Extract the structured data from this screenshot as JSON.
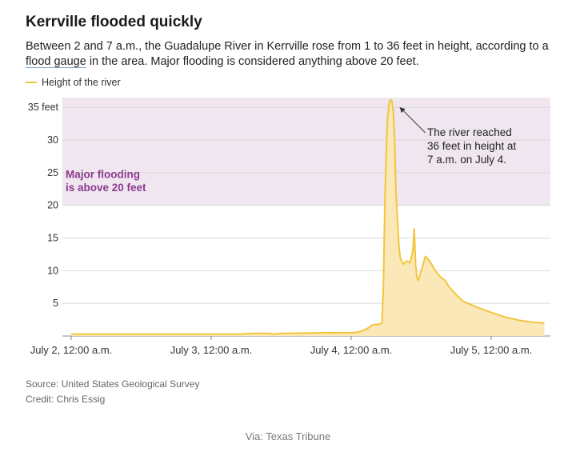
{
  "header": {
    "title": "Kerrville flooded quickly",
    "subtitle_part1": "Between 2 and 7 a.m., the Guadalupe River in Kerrville rose from 1 to 36 feet in height, according to a ",
    "subtitle_link": "flood gauge",
    "subtitle_part2": " in the area. Major flooding is considered anything above 20 feet."
  },
  "legend": {
    "label": "Height of the river"
  },
  "footer": {
    "source": "Source: United States Geological Survey",
    "credit": "Credit: Chris Essig",
    "via": "Via: Texas Tribune"
  },
  "colors": {
    "line": "#f2c53d",
    "area": "#fbe8b8",
    "band": "#efe6f0",
    "band_text": "#8e3a8e",
    "grid": "#d9d9d9"
  },
  "chart_data": {
    "type": "area",
    "xlabel": "",
    "ylabel": "",
    "xlim": [
      0,
      3.45
    ],
    "ylim": [
      0,
      36.5
    ],
    "x_unit": "days from July 2, 12:00 a.m.",
    "x_ticks": [
      {
        "value": 0,
        "label": "July 2, 12:00 a.m."
      },
      {
        "value": 1,
        "label": "July 3, 12:00 a.m."
      },
      {
        "value": 2,
        "label": "July 4, 12:00 a.m."
      },
      {
        "value": 3,
        "label": "July 5, 12:00 a.m."
      }
    ],
    "y_ticks": [
      {
        "value": 5,
        "label": "5"
      },
      {
        "value": 10,
        "label": "10"
      },
      {
        "value": 15,
        "label": "15"
      },
      {
        "value": 20,
        "label": "20"
      },
      {
        "value": 25,
        "label": "25"
      },
      {
        "value": 30,
        "label": "30"
      },
      {
        "value": 35,
        "label": "35 feet"
      }
    ],
    "band": {
      "from": 20,
      "to": 36.5,
      "label_line1": "Major flooding",
      "label_line2": "is above 20 feet"
    },
    "annotation": {
      "line1": "The river reached",
      "line2": "36 feet in height at",
      "line3": "7 a.m. on July 4.",
      "target": [
        2.29,
        36
      ]
    },
    "series": [
      {
        "name": "Height of the river",
        "points": [
          [
            0.0,
            0.3
          ],
          [
            0.5,
            0.3
          ],
          [
            1.0,
            0.3
          ],
          [
            1.2,
            0.3
          ],
          [
            1.3,
            0.4
          ],
          [
            1.4,
            0.4
          ],
          [
            1.45,
            0.3
          ],
          [
            1.5,
            0.4
          ],
          [
            1.7,
            0.45
          ],
          [
            1.9,
            0.5
          ],
          [
            2.0,
            0.5
          ],
          [
            2.05,
            0.6
          ],
          [
            2.08,
            0.8
          ],
          [
            2.12,
            1.2
          ],
          [
            2.15,
            1.7
          ],
          [
            2.2,
            1.8
          ],
          [
            2.22,
            2.0
          ],
          [
            2.23,
            8.0
          ],
          [
            2.24,
            20.0
          ],
          [
            2.25,
            28.0
          ],
          [
            2.26,
            33.5
          ],
          [
            2.27,
            35.5
          ],
          [
            2.28,
            36.2
          ],
          [
            2.29,
            36.0
          ],
          [
            2.3,
            34.5
          ],
          [
            2.31,
            30.0
          ],
          [
            2.32,
            22.0
          ],
          [
            2.33,
            18.0
          ],
          [
            2.34,
            14.0
          ],
          [
            2.35,
            12.0
          ],
          [
            2.37,
            11.0
          ],
          [
            2.4,
            11.5
          ],
          [
            2.42,
            11.2
          ],
          [
            2.44,
            13.0
          ],
          [
            2.45,
            16.4
          ],
          [
            2.46,
            11.0
          ],
          [
            2.47,
            8.8
          ],
          [
            2.48,
            8.5
          ],
          [
            2.5,
            10.0
          ],
          [
            2.53,
            12.2
          ],
          [
            2.56,
            11.5
          ],
          [
            2.6,
            10.0
          ],
          [
            2.63,
            9.2
          ],
          [
            2.67,
            8.5
          ],
          [
            2.7,
            7.5
          ],
          [
            2.75,
            6.3
          ],
          [
            2.8,
            5.3
          ],
          [
            2.9,
            4.4
          ],
          [
            3.0,
            3.6
          ],
          [
            3.1,
            2.9
          ],
          [
            3.2,
            2.4
          ],
          [
            3.3,
            2.1
          ],
          [
            3.38,
            2.0
          ]
        ]
      }
    ]
  }
}
